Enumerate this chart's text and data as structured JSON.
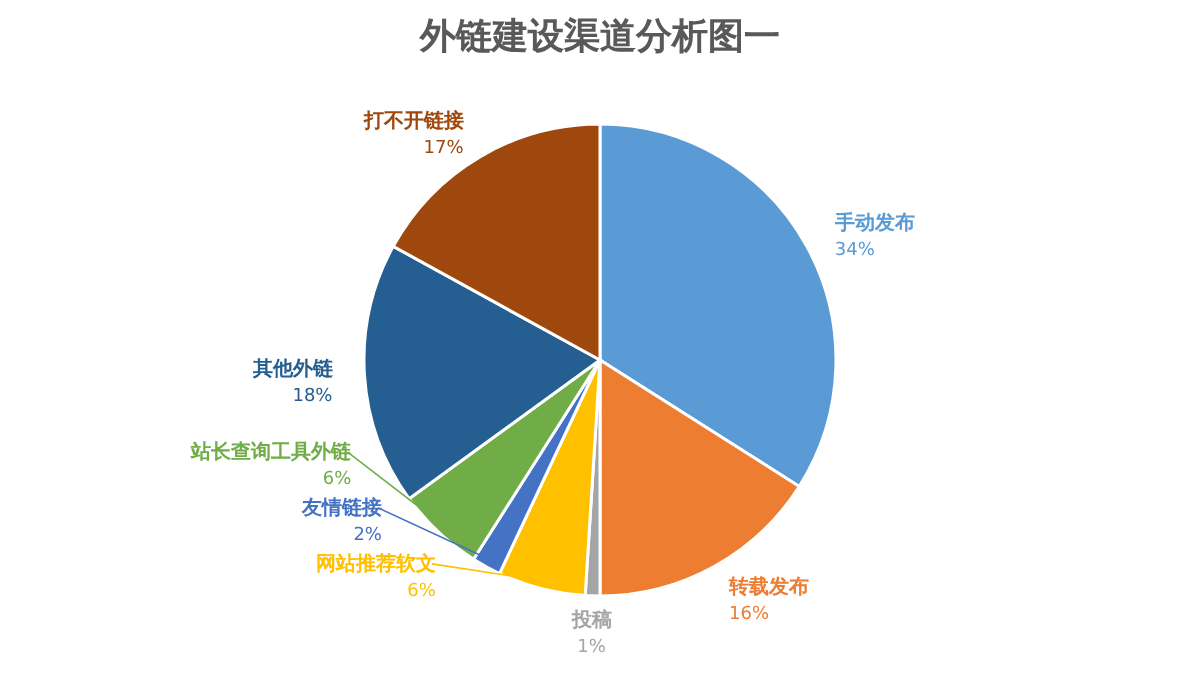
{
  "chart_data": {
    "type": "pie",
    "title": "外链建设渠道分析图一",
    "categories": [
      "手动发布",
      "转载发布",
      "投稿",
      "网站推荐软文",
      "友情链接",
      "站长查询工具外链",
      "其他外链",
      "打不开链接"
    ],
    "values": [
      34,
      16,
      1,
      6,
      2,
      6,
      18,
      17
    ],
    "colors": [
      "#5b9bd5",
      "#ed7d31",
      "#a5a5a5",
      "#ffc000",
      "#4472c4",
      "#70ad47",
      "#255e91",
      "#9e480e"
    ],
    "value_labels": [
      "34%",
      "16%",
      "1%",
      "6%",
      "2%",
      "6%",
      "18%",
      "17%"
    ]
  }
}
